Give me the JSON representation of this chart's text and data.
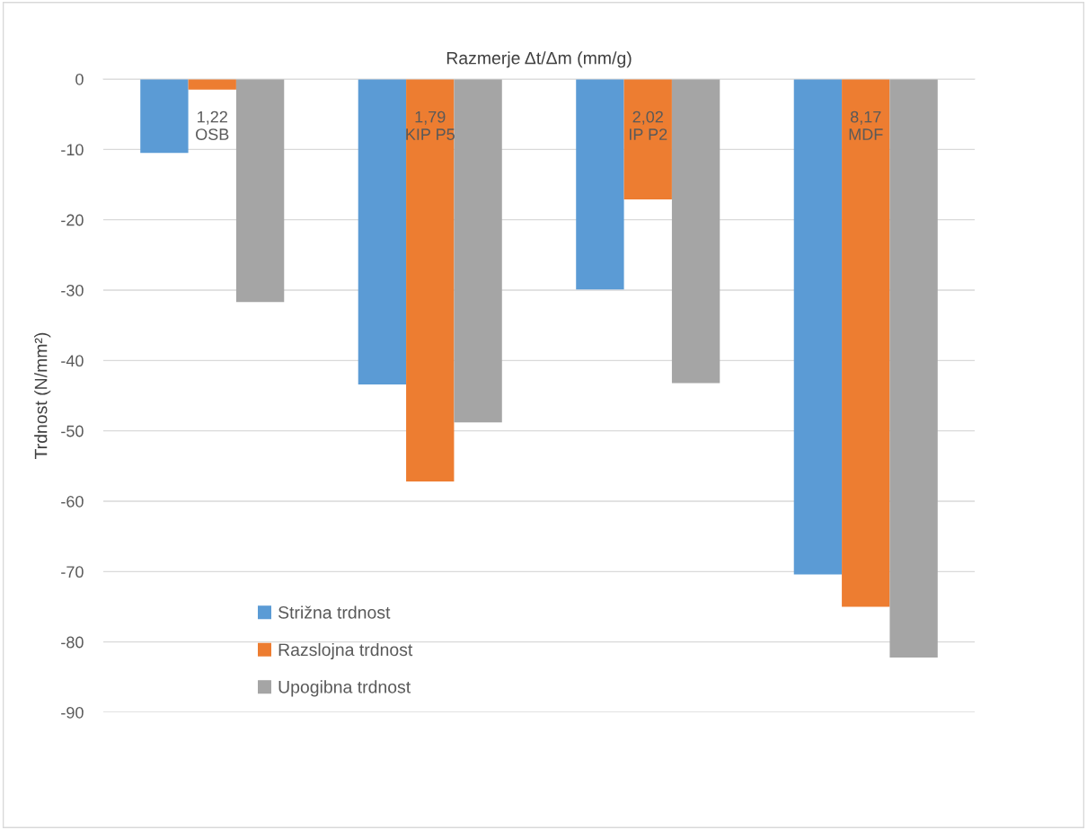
{
  "chart_data": {
    "type": "bar",
    "xlabel": "Razmerje Δt/Δm (mm/g)",
    "ylabel": "Trdnost (N/mm²)",
    "categories": [
      "1,22\nOSB",
      "1,79\nKIP P5",
      "2,02\nIP P2",
      "8,17\nMDF"
    ],
    "series": [
      {
        "name": "Strižna trdnost",
        "color": "#5b9bd5",
        "values": [
          -10.5,
          -43.4,
          -29.9,
          -70.4
        ]
      },
      {
        "name": "Razslojna trdnost",
        "color": "#ed7d31",
        "values": [
          -1.5,
          -57.2,
          -17.1,
          -75.0
        ]
      },
      {
        "name": "Upogibna trdnost",
        "color": "#a5a5a5",
        "values": [
          -31.7,
          -48.8,
          -43.2,
          -82.2
        ]
      }
    ],
    "ylim": [
      -90,
      0
    ],
    "yticks": [
      -90,
      -80,
      -70,
      -60,
      -50,
      -40,
      -30,
      -20,
      -10,
      0
    ],
    "grid": "y",
    "legend": "bottom left"
  }
}
